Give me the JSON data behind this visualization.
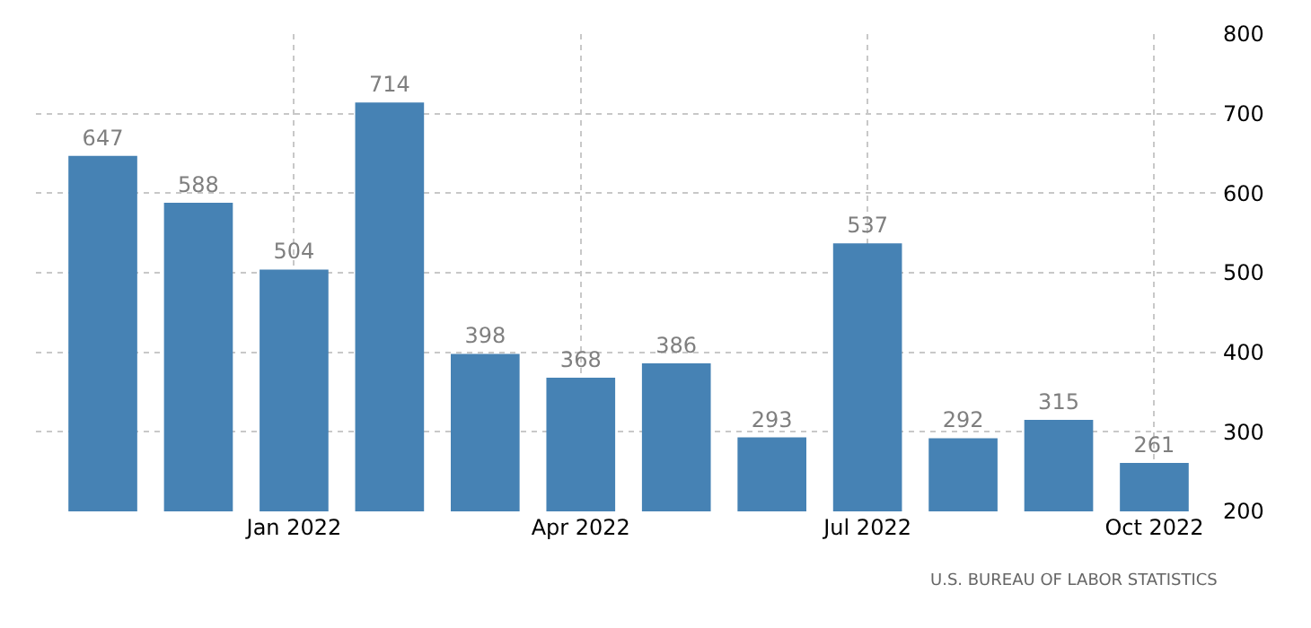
{
  "chart_data": {
    "type": "bar",
    "categories": [
      null,
      null,
      "Jan 2022",
      null,
      null,
      "Apr 2022",
      null,
      null,
      "Jul 2022",
      null,
      null,
      "Oct 2022"
    ],
    "values": [
      647,
      588,
      504,
      714,
      398,
      368,
      386,
      293,
      537,
      292,
      315,
      261
    ],
    "color": "#4682b4",
    "ylim": [
      200,
      800
    ],
    "yticks": [
      200,
      300,
      400,
      500,
      600,
      700,
      800
    ],
    "grid": true,
    "data_labels": true,
    "annotations": [
      "U.S. BUREAU OF LABOR STATISTICS"
    ]
  }
}
